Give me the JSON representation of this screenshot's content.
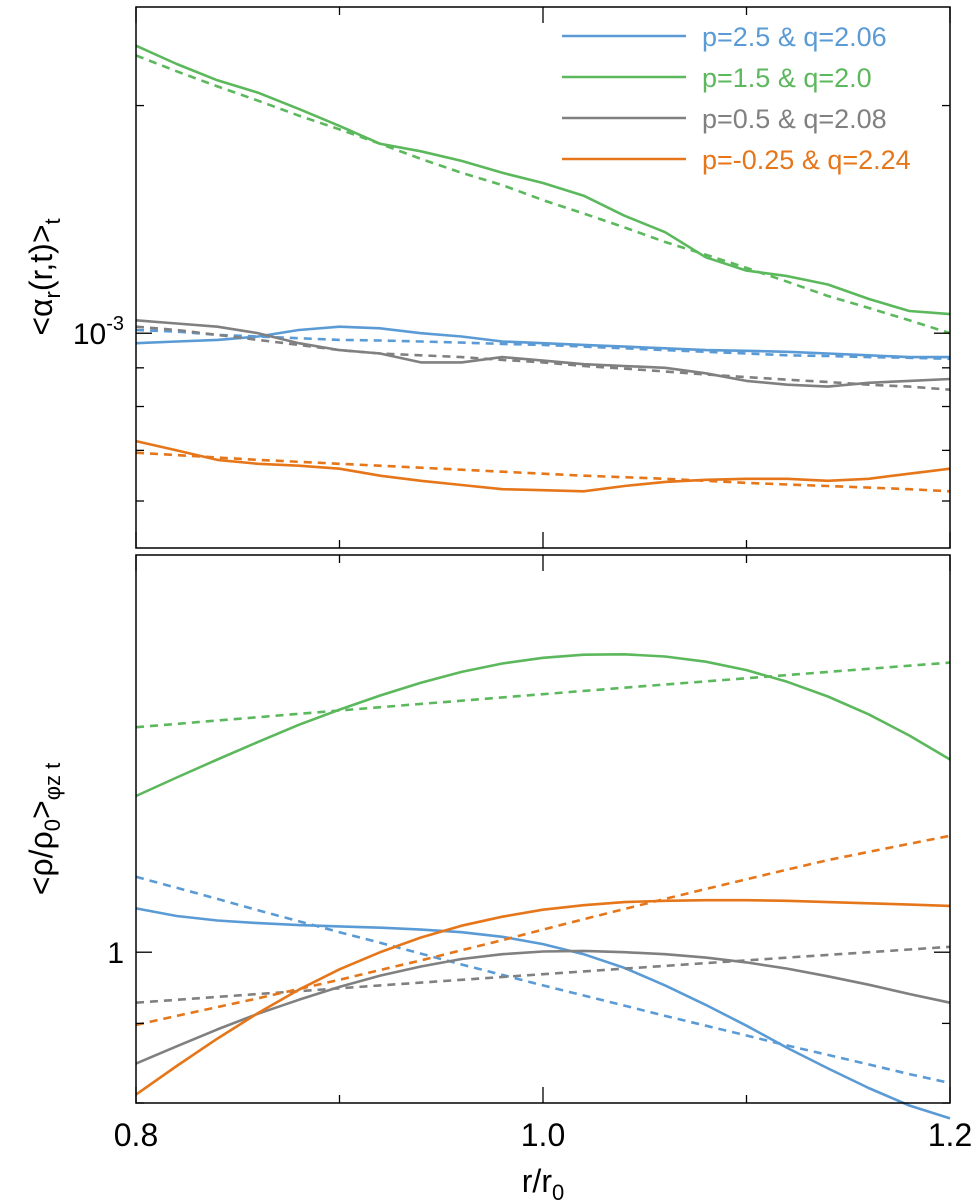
{
  "chart_data": [
    {
      "type": "line",
      "panel": "top",
      "ylabel": "<α",
      "ylabel_sub": "r",
      "ylabel_mid": "(r,t)>",
      "ylabel_sub2": "t",
      "yscale": "log",
      "ylim": [
        0.00052,
        0.0027
      ],
      "xlim": [
        0.8,
        1.2
      ],
      "yticks": [
        {
          "base": "10",
          "exp": "-3",
          "value": 0.001
        }
      ],
      "legend_position": "top-right",
      "series": [
        {
          "name": "p=2.5 & q=2.06",
          "color": "#5b9bd5",
          "x": [
            0.8,
            0.82,
            0.84,
            0.86,
            0.88,
            0.9,
            0.92,
            0.94,
            0.96,
            0.98,
            1.0,
            1.02,
            1.04,
            1.06,
            1.08,
            1.1,
            1.12,
            1.14,
            1.16,
            1.18,
            1.2
          ],
          "y": [
            0.00097,
            0.000975,
            0.00098,
            0.00099,
            0.00101,
            0.00102,
            0.001015,
            0.001,
            0.00099,
            0.000975,
            0.00097,
            0.000965,
            0.00096,
            0.000955,
            0.00095,
            0.000948,
            0.000945,
            0.00094,
            0.000935,
            0.00093,
            0.00093
          ],
          "fit_y": [
            0.00101,
            0.001005,
            0.000995,
            0.00099,
            0.000985,
            0.00098,
            0.000978,
            0.000975,
            0.000972,
            0.000968,
            0.000965,
            0.00096,
            0.000955,
            0.00095,
            0.000945,
            0.00094,
            0.000935,
            0.000933,
            0.00093,
            0.000928,
            0.000925
          ]
        },
        {
          "name": "p=1.5 & q=2.0",
          "color": "#5cb85c",
          "x": [
            0.8,
            0.82,
            0.84,
            0.86,
            0.88,
            0.9,
            0.92,
            0.94,
            0.96,
            0.98,
            1.0,
            1.02,
            1.04,
            1.06,
            1.08,
            1.1,
            1.12,
            1.14,
            1.16,
            1.18,
            1.2
          ],
          "y": [
            0.0024,
            0.00227,
            0.00216,
            0.00208,
            0.00198,
            0.00188,
            0.00178,
            0.00174,
            0.00169,
            0.00163,
            0.00158,
            0.00152,
            0.00143,
            0.00136,
            0.00126,
            0.00121,
            0.00119,
            0.00116,
            0.00111,
            0.00107,
            0.00106
          ],
          "fit_y": [
            0.00233,
            0.00222,
            0.00212,
            0.00203,
            0.00194,
            0.00186,
            0.00178,
            0.0017,
            0.00163,
            0.00157,
            0.0015,
            0.00144,
            0.00138,
            0.00132,
            0.00127,
            0.00122,
            0.00117,
            0.00112,
            0.00108,
            0.00104,
            0.001
          ]
        },
        {
          "name": "p=0.5 & q=2.08",
          "color": "#808080",
          "x": [
            0.8,
            0.82,
            0.84,
            0.86,
            0.88,
            0.9,
            0.92,
            0.94,
            0.96,
            0.98,
            1.0,
            1.02,
            1.04,
            1.06,
            1.08,
            1.1,
            1.12,
            1.14,
            1.16,
            1.18,
            1.2
          ],
          "y": [
            0.00104,
            0.00103,
            0.00102,
            0.001,
            0.00097,
            0.00095,
            0.00094,
            0.000915,
            0.000915,
            0.00093,
            0.00092,
            0.00091,
            0.000905,
            0.0009,
            0.000885,
            0.000865,
            0.000855,
            0.00085,
            0.00086,
            0.000865,
            0.00087
          ],
          "fit_y": [
            0.00102,
            0.00101,
            0.000995,
            0.00098,
            0.000965,
            0.00095,
            0.00094,
            0.000935,
            0.00093,
            0.000922,
            0.000915,
            0.000905,
            0.000898,
            0.00089,
            0.000882,
            0.000875,
            0.000868,
            0.000862,
            0.000855,
            0.00085,
            0.000842
          ]
        },
        {
          "name": "p=-0.25 & q=2.24",
          "color": "#e5761a",
          "x": [
            0.8,
            0.82,
            0.84,
            0.86,
            0.88,
            0.9,
            0.92,
            0.94,
            0.96,
            0.98,
            1.0,
            1.02,
            1.04,
            1.06,
            1.08,
            1.1,
            1.12,
            1.14,
            1.16,
            1.18,
            1.2
          ],
          "y": [
            0.00072,
            0.0007,
            0.00068,
            0.000672,
            0.000668,
            0.000662,
            0.000648,
            0.000638,
            0.00063,
            0.000622,
            0.00062,
            0.000618,
            0.000628,
            0.000636,
            0.00064,
            0.000642,
            0.000642,
            0.000638,
            0.000642,
            0.000652,
            0.000662
          ],
          "fit_y": [
            0.000695,
            0.00069,
            0.000685,
            0.00068,
            0.000676,
            0.000672,
            0.000668,
            0.000664,
            0.00066,
            0.000656,
            0.000652,
            0.000648,
            0.000645,
            0.000642,
            0.000638,
            0.000634,
            0.000631,
            0.000628,
            0.000625,
            0.000622,
            0.000618
          ]
        }
      ]
    },
    {
      "type": "line",
      "panel": "bottom",
      "ylabel": "<ρ/ρ",
      "ylabel_sub": "0",
      "ylabel_mid": ">",
      "ylabel_sub2": "φz t",
      "xlabel": "r/r",
      "xlabel_sub": "0",
      "yscale": "log",
      "ylim": [
        0.8,
        1.8
      ],
      "xlim": [
        0.8,
        1.2
      ],
      "yticks": [
        {
          "label": "1",
          "value": 1.0
        }
      ],
      "xticks": [
        {
          "label": "0.8",
          "value": 0.8
        },
        {
          "label": "1.0",
          "value": 1.0
        },
        {
          "label": "1.2",
          "value": 1.2
        }
      ],
      "series": [
        {
          "name": "p=2.5 & q=2.06",
          "color": "#5b9bd5",
          "x": [
            0.8,
            0.82,
            0.84,
            0.86,
            0.88,
            0.9,
            0.92,
            0.94,
            0.96,
            0.98,
            1.0,
            1.02,
            1.04,
            1.06,
            1.08,
            1.1,
            1.12,
            1.14,
            1.16,
            1.18,
            1.2
          ],
          "y": [
            1.067,
            1.055,
            1.048,
            1.044,
            1.041,
            1.039,
            1.037,
            1.034,
            1.03,
            1.023,
            1.012,
            0.997,
            0.977,
            0.952,
            0.925,
            0.897,
            0.868,
            0.842,
            0.818,
            0.797,
            0.782
          ],
          "fit_y": [
            1.118,
            1.1,
            1.082,
            1.064,
            1.047,
            1.03,
            1.014,
            0.998,
            0.982,
            0.967,
            0.952,
            0.938,
            0.924,
            0.91,
            0.897,
            0.884,
            0.871,
            0.859,
            0.847,
            0.835,
            0.824
          ]
        },
        {
          "name": "p=1.5 & q=2.0",
          "color": "#5cb85c",
          "x": [
            0.8,
            0.82,
            0.84,
            0.86,
            0.88,
            0.9,
            0.92,
            0.94,
            0.96,
            0.98,
            1.0,
            1.02,
            1.04,
            1.06,
            1.08,
            1.1,
            1.12,
            1.14,
            1.16,
            1.18,
            1.2
          ],
          "y": [
            1.26,
            1.295,
            1.33,
            1.365,
            1.4,
            1.432,
            1.462,
            1.49,
            1.514,
            1.533,
            1.546,
            1.553,
            1.554,
            1.549,
            1.537,
            1.518,
            1.492,
            1.46,
            1.422,
            1.378,
            1.33
          ],
          "fit_y": [
            1.395,
            1.402,
            1.409,
            1.416,
            1.423,
            1.43,
            1.437,
            1.444,
            1.451,
            1.458,
            1.465,
            1.472,
            1.479,
            1.486,
            1.493,
            1.5,
            1.507,
            1.514,
            1.521,
            1.528,
            1.535
          ]
        },
        {
          "name": "p=0.5 & q=2.08",
          "color": "#808080",
          "x": [
            0.8,
            0.82,
            0.84,
            0.86,
            0.88,
            0.9,
            0.92,
            0.94,
            0.96,
            0.98,
            1.0,
            1.02,
            1.04,
            1.06,
            1.08,
            1.1,
            1.12,
            1.14,
            1.16,
            1.18,
            1.2
          ],
          "y": [
            0.848,
            0.87,
            0.892,
            0.913,
            0.932,
            0.95,
            0.966,
            0.979,
            0.99,
            0.997,
            1.001,
            1.002,
            1.0,
            0.997,
            0.992,
            0.985,
            0.976,
            0.965,
            0.953,
            0.94,
            0.928
          ],
          "fit_y": [
            0.928,
            0.932,
            0.936,
            0.94,
            0.944,
            0.948,
            0.952,
            0.956,
            0.96,
            0.964,
            0.968,
            0.972,
            0.976,
            0.98,
            0.984,
            0.988,
            0.992,
            0.996,
            1.0,
            1.004,
            1.008
          ]
        },
        {
          "name": "p=-0.25 & q=2.24",
          "color": "#e5761a",
          "x": [
            0.8,
            0.82,
            0.84,
            0.86,
            0.88,
            0.9,
            0.92,
            0.94,
            0.96,
            0.98,
            1.0,
            1.02,
            1.04,
            1.06,
            1.08,
            1.1,
            1.12,
            1.14,
            1.16,
            1.18,
            1.2
          ],
          "y": [
            0.81,
            0.845,
            0.88,
            0.914,
            0.946,
            0.975,
            1.0,
            1.022,
            1.04,
            1.054,
            1.065,
            1.072,
            1.077,
            1.079,
            1.08,
            1.08,
            1.079,
            1.077,
            1.075,
            1.073,
            1.071
          ],
          "fit_y": [
            0.898,
            0.91,
            0.922,
            0.934,
            0.947,
            0.96,
            0.974,
            0.988,
            1.003,
            1.018,
            1.034,
            1.05,
            1.066,
            1.082,
            1.098,
            1.114,
            1.13,
            1.146,
            1.16,
            1.174,
            1.188
          ]
        }
      ]
    }
  ]
}
